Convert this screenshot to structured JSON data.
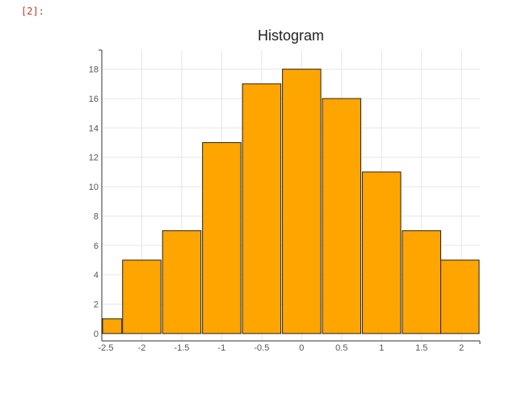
{
  "cell": {
    "prompt": "[2]:"
  },
  "chart_data": {
    "type": "bar",
    "title": "Histogram",
    "xlabel": "",
    "ylabel": "",
    "bin_centers": [
      -2.49,
      -2.0,
      -1.5,
      -1.0,
      -0.5,
      0.0,
      0.5,
      1.0,
      1.5,
      1.98
    ],
    "bin_width": 0.48,
    "values": [
      1,
      5,
      7,
      13,
      17,
      18,
      16,
      11,
      7,
      5
    ],
    "xlim": [
      -2.5,
      2.23
    ],
    "ylim": [
      -0.5,
      19.3
    ],
    "xticks": [
      -2.5,
      -2,
      -1.5,
      -1,
      -0.5,
      0,
      0.5,
      1,
      1.5,
      2
    ],
    "xtick_labels": [
      "-2.5",
      "-2",
      "-1.5",
      "-1",
      "-0.5",
      "0",
      "0.5",
      "1",
      "1.5",
      "2"
    ],
    "yticks": [
      0,
      2,
      4,
      6,
      8,
      10,
      12,
      14,
      16,
      18
    ],
    "ytick_labels": [
      "0",
      "2",
      "4",
      "6",
      "8",
      "10",
      "12",
      "14",
      "16",
      "18"
    ],
    "grid": true,
    "bar_color": "#FFA500",
    "bar_edge_color": "#222222",
    "grid_color": "#e6e6e6",
    "axis_color": "#333333"
  }
}
